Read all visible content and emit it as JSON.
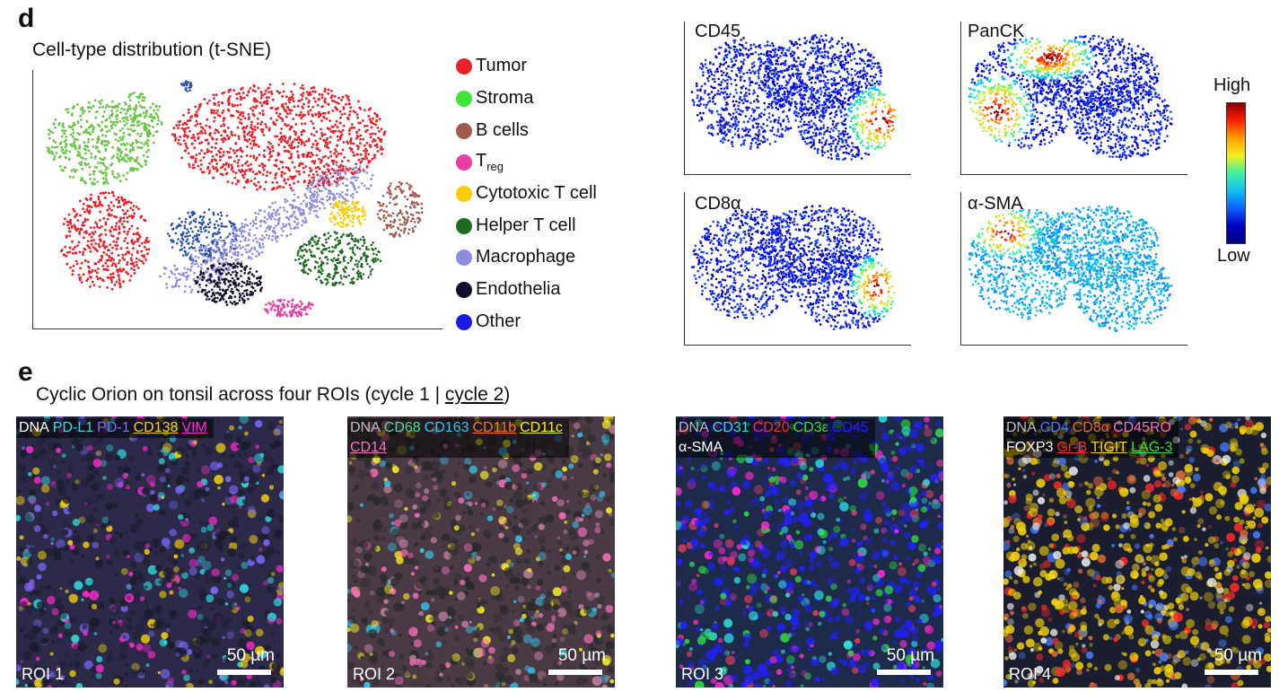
{
  "panel_d": {
    "letter": "d",
    "title": "Cell-type distribution (t-SNE)",
    "legend": [
      {
        "label": "Tumor",
        "color": "#e8222a"
      },
      {
        "label": "Stroma",
        "color": "#3ce43c"
      },
      {
        "label": "B cells",
        "color": "#a35a4e"
      },
      {
        "label": "T",
        "sub": "reg",
        "color": "#e83ea0"
      },
      {
        "label": "Cytotoxic T cell",
        "color": "#f7cc08"
      },
      {
        "label": "Helper T cell",
        "color": "#1f6a20"
      },
      {
        "label": "Macrophage",
        "color": "#8c8ce0"
      },
      {
        "label": "Endothelia",
        "color": "#0f0f2e"
      },
      {
        "label": "Other",
        "color": "#1a1ae6"
      }
    ],
    "markers": [
      "CD45",
      "PanCK",
      "CD8α",
      "α-SMA"
    ],
    "colorbar": {
      "high": "High",
      "low": "Low"
    }
  },
  "panel_e": {
    "letter": "e",
    "title_prefix": "Cyclic Orion on tonsil across four ROIs (cycle 1 | ",
    "title_link": "cycle 2",
    "title_suffix": ")",
    "rois": [
      {
        "label": "ROI 1",
        "scale": "50 µm",
        "lines": [
          [
            {
              "text": "DNA",
              "color": "#ffffff",
              "underline": false
            },
            {
              "text": "PD-L1",
              "color": "#2ee0e0",
              "underline": false
            },
            {
              "text": "PD-1",
              "color": "#7a6cff",
              "underline": false
            },
            {
              "text": "CD138",
              "color": "#f5d20c",
              "underline": true
            },
            {
              "text": "VIM",
              "color": "#ff2ad0",
              "underline": true
            }
          ]
        ]
      },
      {
        "label": "ROI 2",
        "scale": "50 µm",
        "lines": [
          [
            {
              "text": "DNA",
              "color": "#bdbdbd",
              "underline": false
            },
            {
              "text": "CD68",
              "color": "#3ee0a0",
              "underline": false
            },
            {
              "text": "CD163",
              "color": "#34c8f0",
              "underline": false
            },
            {
              "text": "CD11b",
              "color": "#f07a20",
              "underline": true
            },
            {
              "text": "CD11c",
              "color": "#f5f020",
              "underline": true
            }
          ],
          [
            {
              "text": "CD14",
              "color": "#ff70c0",
              "underline": true
            }
          ]
        ]
      },
      {
        "label": "ROI 3",
        "scale": "50 µm",
        "lines": [
          [
            {
              "text": "DNA",
              "color": "#bdbdbd",
              "underline": false
            },
            {
              "text": "CD31",
              "color": "#30e0e0",
              "underline": false
            },
            {
              "text": "CD20",
              "color": "#ff2a2a",
              "underline": false
            },
            {
              "text": "CD3ε",
              "color": "#30e040",
              "underline": false
            },
            {
              "text": "CD45",
              "color": "#2020ff",
              "underline": false
            }
          ],
          [
            {
              "text": "α-SMA",
              "color": "#ffffff",
              "underline": false
            }
          ]
        ]
      },
      {
        "label": "ROI 4",
        "scale": "50 µm",
        "lines": [
          [
            {
              "text": "DNA",
              "color": "#bdbdbd",
              "underline": false
            },
            {
              "text": "CD4",
              "color": "#4a7cff",
              "underline": false
            },
            {
              "text": "CD8α",
              "color": "#e06a3a",
              "underline": false
            },
            {
              "text": "CD45RO",
              "color": "#f070c0",
              "underline": false
            }
          ],
          [
            {
              "text": "FOXP3",
              "color": "#ffffff",
              "underline": false
            },
            {
              "text": "Gr-B",
              "color": "#ff2a2a",
              "underline": true
            },
            {
              "text": "TIGIT",
              "color": "#f5d20c",
              "underline": true
            },
            {
              "text": "LAG-3",
              "color": "#30e040",
              "underline": true
            }
          ]
        ]
      }
    ]
  }
}
